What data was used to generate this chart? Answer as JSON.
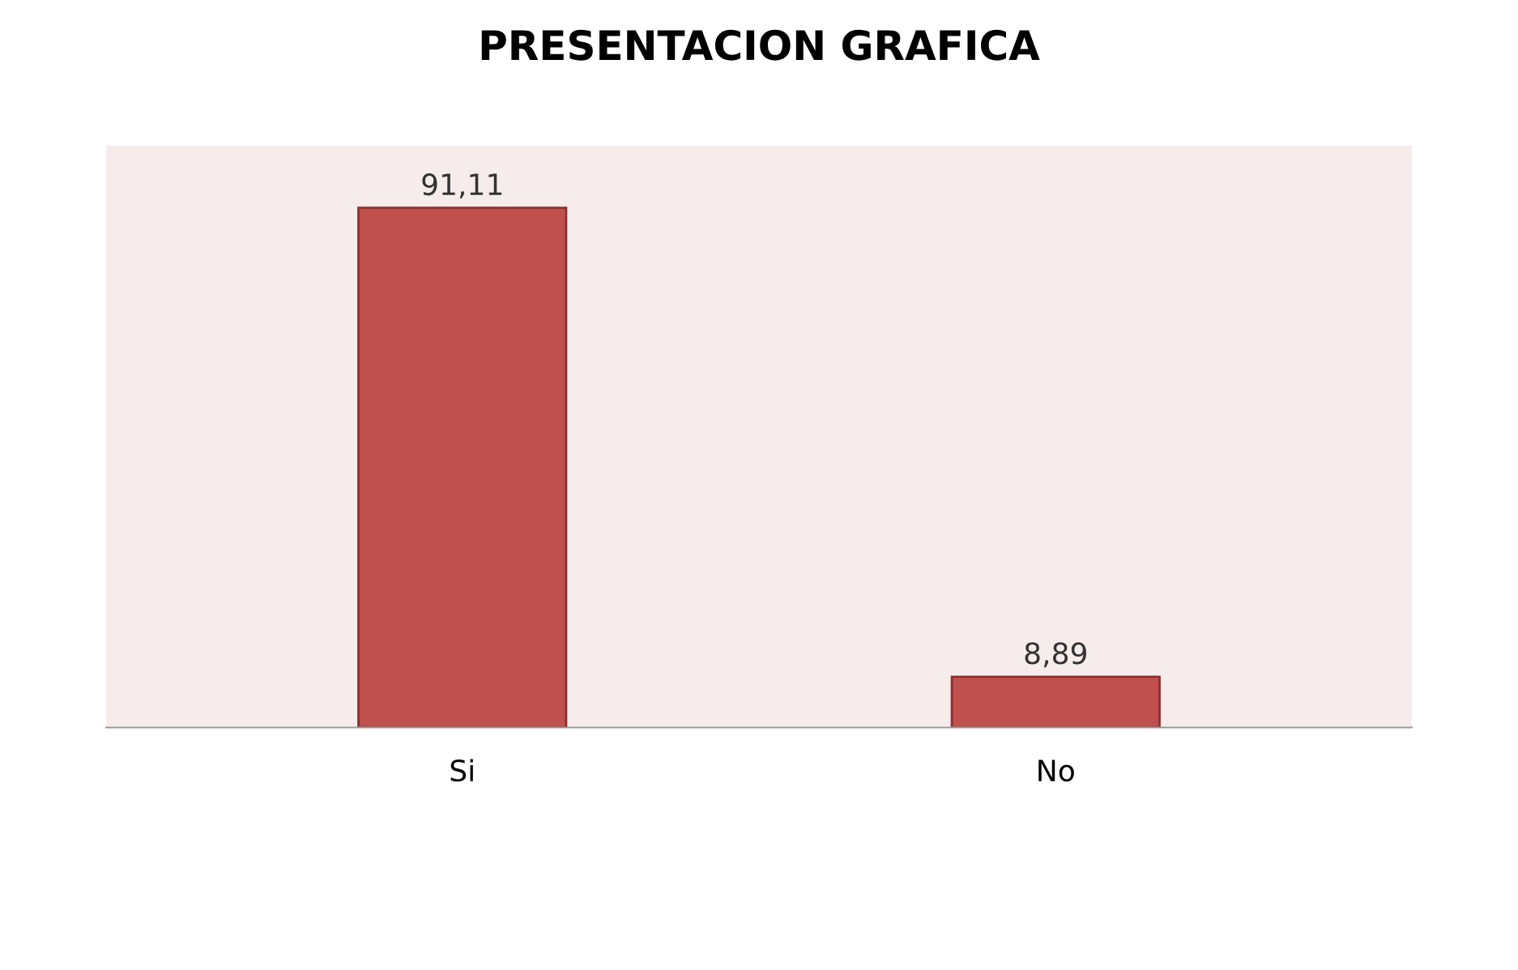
{
  "chart_data": {
    "type": "bar",
    "title": "PRESENTACION GRAFICA",
    "categories": [
      "Si",
      "No"
    ],
    "values": [
      91.11,
      8.89
    ],
    "value_labels": [
      "91,11",
      "8,89"
    ],
    "color": "#c0504d"
  }
}
